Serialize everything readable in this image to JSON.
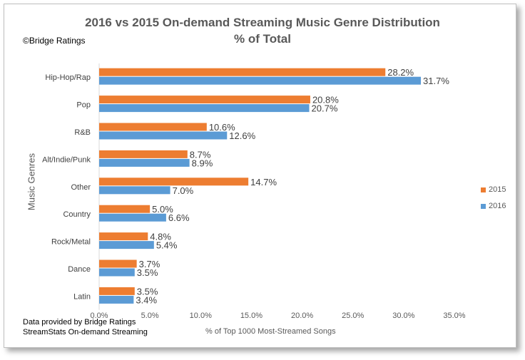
{
  "title_line1": "2016 vs 2015 On-demand Streaming Music Genre Distribution",
  "title_line2": "% of Total",
  "copyright": "©Bridge Ratings",
  "footnote_line1": "Data provided by Bridge Ratings",
  "footnote_line2": "StreamStats On-demand Streaming",
  "chart_data": {
    "type": "bar",
    "orientation": "horizontal",
    "title": "2016 vs 2015 On-demand Streaming Music Genre Distribution",
    "subtitle": "% of Total",
    "xlabel": "% of Top 1000 Most-Streamed Songs",
    "ylabel": "Music Genres",
    "categories": [
      "Hip-Hop/Rap",
      "Pop",
      "R&B",
      "Alt/Indie/Punk",
      "Other",
      "Country",
      "Rock/Metal",
      "Dance",
      "Latin"
    ],
    "series": [
      {
        "name": "2015",
        "color": "#ED7D31",
        "values": [
          28.2,
          20.8,
          10.6,
          8.7,
          14.7,
          5.0,
          4.8,
          3.7,
          3.5
        ],
        "labels": [
          "28.2%",
          "20.8%",
          "10.6%",
          "8.7%",
          "14.7%",
          "5.0%",
          "4.8%",
          "3.7%",
          "3.5%"
        ]
      },
      {
        "name": "2016",
        "color": "#5B9BD5",
        "values": [
          31.7,
          20.7,
          12.6,
          8.9,
          7.0,
          6.6,
          5.4,
          3.5,
          3.4
        ],
        "labels": [
          "31.7%",
          "20.7%",
          "12.6%",
          "8.9%",
          "7.0%",
          "6.6%",
          "5.4%",
          "3.5%",
          "3.4%"
        ]
      }
    ],
    "xlim": [
      0,
      35
    ],
    "xticks": [
      "0.0%",
      "5.0%",
      "10.0%",
      "15.0%",
      "20.0%",
      "25.0%",
      "30.0%",
      "35.0%"
    ],
    "grid": false,
    "legend_position": "right"
  }
}
